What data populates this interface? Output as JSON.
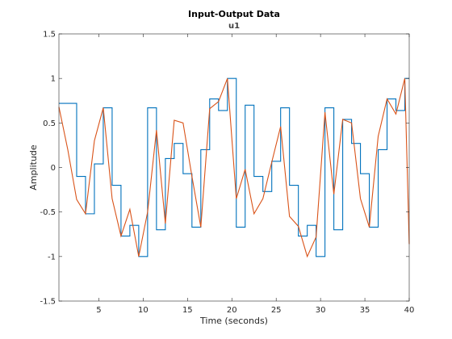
{
  "chart_data": {
    "type": "line",
    "title": "Input-Output Data",
    "subtitle": "u1",
    "xlabel": "Time (seconds)",
    "ylabel": "Amplitude",
    "xlim": [
      0.5,
      40
    ],
    "ylim": [
      -1.5,
      1.5
    ],
    "xticks": [
      5,
      10,
      15,
      20,
      25,
      30,
      35,
      40
    ],
    "yticks": [
      -1.5,
      -1,
      -0.5,
      0,
      0.5,
      1,
      1.5
    ],
    "yticklabels": [
      "-1.5",
      "-1",
      "-0.5",
      "0",
      "0.5",
      "1",
      "1.5"
    ],
    "grid": false,
    "series": [
      {
        "style": "step",
        "color": "#0072BD",
        "x": [
          0.5,
          1.5,
          2.5,
          3.5,
          4.5,
          5.5,
          6.5,
          7.5,
          8.5,
          9.5,
          10.5,
          11.5,
          12.5,
          13.5,
          14.5,
          15.5,
          16.5,
          17.5,
          18.5,
          19.5,
          20.5,
          21.5,
          22.5,
          23.5,
          24.5,
          25.5,
          26.5,
          27.5,
          28.5,
          29.5,
          30.5,
          31.5,
          32.5,
          33.5,
          34.5,
          35.5,
          36.5,
          37.5,
          38.5,
          39.5
        ],
        "values": [
          0.72,
          0.72,
          -0.1,
          -0.52,
          0.04,
          0.67,
          -0.2,
          -0.77,
          -0.65,
          -1.0,
          0.67,
          -0.7,
          0.1,
          0.27,
          -0.07,
          -0.67,
          0.2,
          0.77,
          0.64,
          1.0,
          -0.67,
          0.7,
          -0.1,
          -0.27,
          0.07,
          0.67,
          -0.2,
          -0.77,
          -0.65,
          -1.0,
          0.67,
          -0.7,
          0.54,
          0.27,
          -0.07,
          -0.67,
          0.2,
          0.77,
          0.64,
          1.0
        ]
      },
      {
        "style": "line",
        "color": "#D95319",
        "x": [
          0.5,
          1.5,
          2.5,
          3.5,
          4.5,
          5.5,
          6.5,
          7.5,
          8.5,
          9.5,
          10.5,
          11.5,
          12.5,
          13.5,
          14.5,
          15.5,
          16.5,
          17.5,
          18.5,
          19.5,
          20.5,
          21.5,
          22.5,
          23.5,
          24.5,
          25.5,
          26.5,
          27.5,
          28.5,
          29.5,
          30.5,
          31.5,
          32.5,
          33.5,
          34.5,
          35.5,
          36.5,
          37.5,
          38.5,
          39.5,
          40
        ],
        "values": [
          0.68,
          0.2,
          -0.36,
          -0.52,
          0.3,
          0.67,
          -0.35,
          -0.77,
          -0.47,
          -1.0,
          -0.5,
          0.42,
          -0.63,
          0.53,
          0.5,
          -0.1,
          -0.67,
          0.66,
          0.74,
          1.0,
          -0.35,
          -0.02,
          -0.52,
          -0.35,
          0.06,
          0.46,
          -0.55,
          -0.66,
          -1.0,
          -0.78,
          0.62,
          -0.3,
          0.54,
          0.5,
          -0.35,
          -0.67,
          0.35,
          0.77,
          0.6,
          1.0,
          -0.86
        ]
      }
    ]
  }
}
